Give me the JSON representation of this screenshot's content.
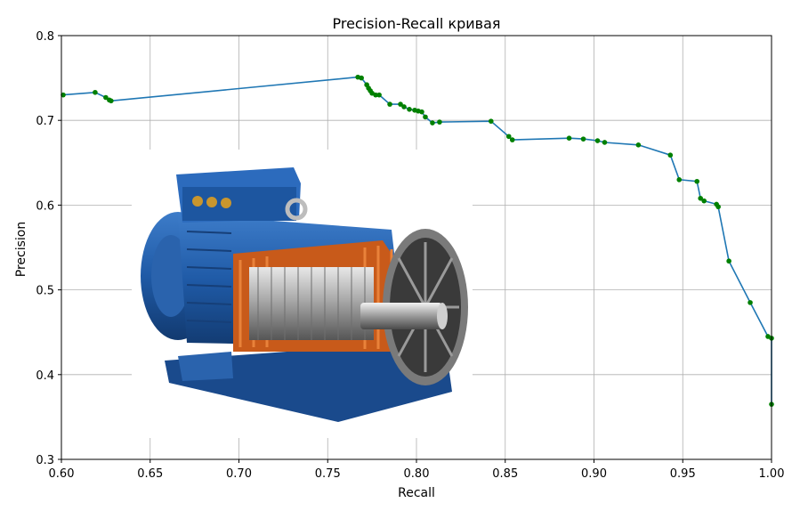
{
  "chart_data": {
    "type": "line",
    "title": "Precision-Recall кривая",
    "xlabel": "Recall",
    "ylabel": "Precision",
    "xlim": [
      0.6,
      1.0
    ],
    "ylim": [
      0.3,
      0.8
    ],
    "x_ticks": [
      "0.60",
      "0.65",
      "0.70",
      "0.75",
      "0.80",
      "0.85",
      "0.90",
      "0.95",
      "1.00"
    ],
    "y_ticks": [
      "0.3",
      "0.4",
      "0.5",
      "0.6",
      "0.7",
      "0.8"
    ],
    "grid": true,
    "line_color": "#1f77b4",
    "marker_color": "#008000",
    "series": [
      {
        "points": [
          [
            0.601,
            0.73
          ],
          [
            0.619,
            0.733
          ],
          [
            0.625,
            0.727
          ],
          [
            0.627,
            0.724
          ],
          [
            0.628,
            0.723
          ],
          [
            0.767,
            0.751
          ],
          [
            0.769,
            0.75
          ],
          [
            0.772,
            0.742
          ],
          [
            0.773,
            0.738
          ],
          [
            0.774,
            0.735
          ],
          [
            0.775,
            0.732
          ],
          [
            0.777,
            0.73
          ],
          [
            0.779,
            0.73
          ],
          [
            0.785,
            0.719
          ],
          [
            0.791,
            0.719
          ],
          [
            0.793,
            0.716
          ],
          [
            0.796,
            0.713
          ],
          [
            0.799,
            0.712
          ],
          [
            0.801,
            0.711
          ],
          [
            0.803,
            0.71
          ],
          [
            0.805,
            0.704
          ],
          [
            0.809,
            0.697
          ],
          [
            0.813,
            0.698
          ],
          [
            0.842,
            0.699
          ],
          [
            0.852,
            0.681
          ],
          [
            0.854,
            0.677
          ],
          [
            0.886,
            0.679
          ],
          [
            0.894,
            0.678
          ],
          [
            0.902,
            0.676
          ],
          [
            0.906,
            0.674
          ],
          [
            0.925,
            0.671
          ],
          [
            0.943,
            0.659
          ],
          [
            0.948,
            0.63
          ],
          [
            0.958,
            0.628
          ],
          [
            0.96,
            0.608
          ],
          [
            0.962,
            0.605
          ],
          [
            0.969,
            0.601
          ],
          [
            0.97,
            0.598
          ],
          [
            0.976,
            0.534
          ],
          [
            0.988,
            0.485
          ],
          [
            0.998,
            0.445
          ],
          [
            1.0,
            0.443
          ],
          [
            1.0,
            0.365
          ]
        ]
      }
    ]
  },
  "overlay": {
    "icon": "electric-motor-cutaway-icon"
  }
}
